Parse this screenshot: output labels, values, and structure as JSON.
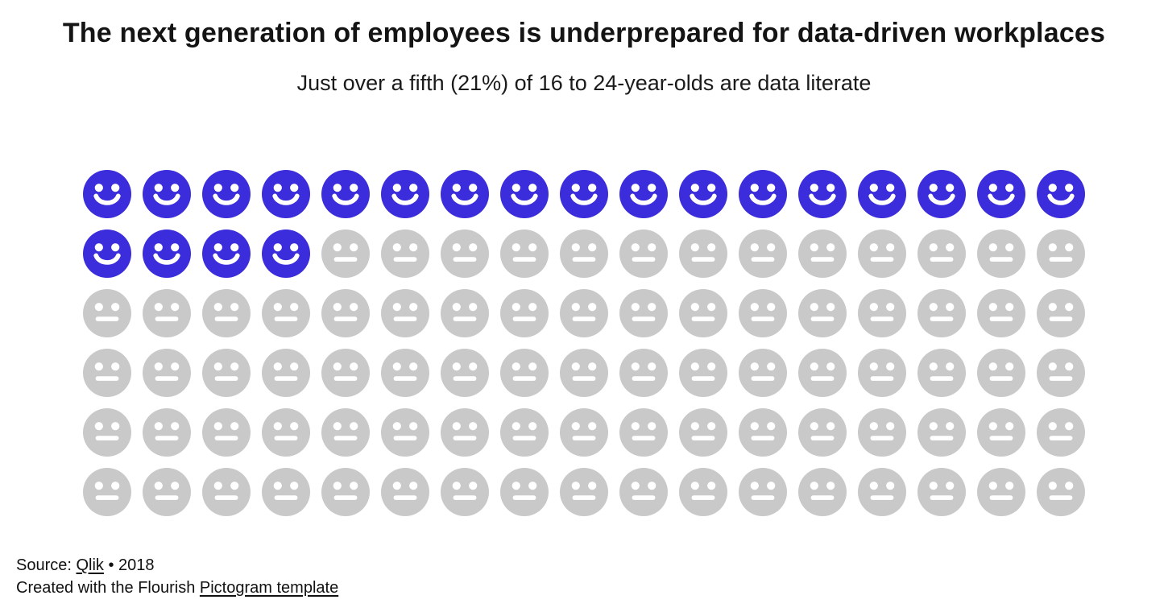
{
  "header": {
    "title": "The next generation of employees is underprepared for data-driven workplaces",
    "subtitle": "Just over a fifth (21%) of 16 to 24-year-olds are data literate"
  },
  "chart_data": {
    "type": "pictogram",
    "title": "The next generation of employees is underprepared for data-driven workplaces",
    "subtitle": "Just over a fifth (21%) of 16 to 24-year-olds are data literate",
    "stated_percent": "21%",
    "filled_count": 21,
    "total_count": 102,
    "columns": 17,
    "rows": 6,
    "fill_order": "row-major-left-to-right",
    "filled_icon": "smiley-face",
    "unfilled_icon": "neutral-face",
    "filled_color": "#3B2DDB",
    "unfilled_color": "#C9C9C9",
    "feature_color": "#FFFFFF"
  },
  "footer": {
    "source_prefix": "Source: ",
    "source_link_label": "Qlik",
    "source_suffix": " • 2018",
    "credit_prefix": "Created with the Flourish ",
    "credit_link_label": "Pictogram template"
  }
}
